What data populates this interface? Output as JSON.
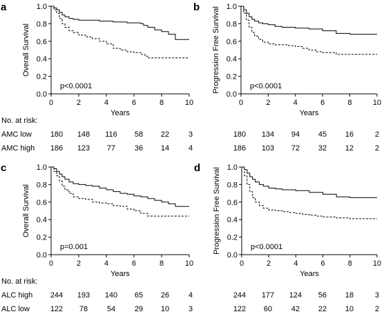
{
  "chart_data": [
    {
      "panel": "a",
      "type": "line",
      "xlabel": "Years",
      "ylabel": "Overall Survival",
      "xlim": [
        0,
        10
      ],
      "ylim": [
        0,
        1.0
      ],
      "xticks": [
        "0",
        "2",
        "4",
        "6",
        "8",
        "10"
      ],
      "yticks": [
        "0.0",
        "0.2",
        "0.4",
        "0.6",
        "0.8",
        "1.0"
      ],
      "pvalue": "p<0.0001",
      "series": [
        {
          "style": "solid",
          "x": [
            0,
            0.2,
            0.4,
            0.6,
            0.8,
            1.0,
            1.3,
            1.6,
            2.0,
            2.5,
            3.0,
            3.5,
            4.0,
            4.5,
            5.0,
            5.5,
            6.0,
            6.5,
            6.7,
            7.0,
            7.5,
            8.0,
            8.5,
            9.0,
            10.0
          ],
          "y": [
            1.0,
            0.98,
            0.96,
            0.93,
            0.9,
            0.88,
            0.86,
            0.85,
            0.84,
            0.84,
            0.84,
            0.83,
            0.83,
            0.82,
            0.82,
            0.81,
            0.81,
            0.8,
            0.78,
            0.76,
            0.73,
            0.71,
            0.68,
            0.62,
            0.62
          ]
        },
        {
          "style": "dashed",
          "x": [
            0,
            0.2,
            0.4,
            0.6,
            0.8,
            1.0,
            1.3,
            1.6,
            2.0,
            2.5,
            3.0,
            3.5,
            4.0,
            4.5,
            5.0,
            5.5,
            6.0,
            6.5,
            6.8,
            7.0,
            8.0,
            9.0,
            10.0
          ],
          "y": [
            1.0,
            0.96,
            0.92,
            0.86,
            0.8,
            0.76,
            0.72,
            0.7,
            0.67,
            0.65,
            0.63,
            0.6,
            0.57,
            0.52,
            0.5,
            0.48,
            0.47,
            0.45,
            0.43,
            0.41,
            0.41,
            0.41,
            0.41
          ]
        }
      ]
    },
    {
      "panel": "b",
      "type": "line",
      "xlabel": "Years",
      "ylabel": "Progression Free Survival",
      "xlim": [
        0,
        10
      ],
      "ylim": [
        0,
        1.0
      ],
      "xticks": [
        "0",
        "2",
        "4",
        "6",
        "8",
        "10"
      ],
      "yticks": [
        "0.0",
        "0.2",
        "0.4",
        "0.6",
        "0.8",
        "1.0"
      ],
      "pvalue": "p<0.0001",
      "series": [
        {
          "style": "solid",
          "x": [
            0,
            0.2,
            0.4,
            0.6,
            0.8,
            1.0,
            1.3,
            1.6,
            2.0,
            2.5,
            3.0,
            4.0,
            5.0,
            6.0,
            7.0,
            8.0,
            10.0
          ],
          "y": [
            1.0,
            0.96,
            0.92,
            0.88,
            0.85,
            0.83,
            0.81,
            0.8,
            0.79,
            0.77,
            0.76,
            0.75,
            0.74,
            0.72,
            0.69,
            0.68,
            0.68
          ]
        },
        {
          "style": "dashed",
          "x": [
            0,
            0.2,
            0.4,
            0.6,
            0.8,
            1.0,
            1.3,
            1.6,
            2.0,
            2.5,
            3.0,
            3.5,
            4.0,
            4.5,
            5.0,
            5.5,
            6.0,
            7.0,
            8.0,
            10.0
          ],
          "y": [
            1.0,
            0.92,
            0.84,
            0.76,
            0.7,
            0.66,
            0.62,
            0.59,
            0.57,
            0.56,
            0.56,
            0.55,
            0.54,
            0.52,
            0.5,
            0.48,
            0.47,
            0.45,
            0.45,
            0.45
          ]
        }
      ]
    },
    {
      "panel": "c",
      "type": "line",
      "xlabel": "Years",
      "ylabel": "Overall Survival",
      "xlim": [
        0,
        10
      ],
      "ylim": [
        0,
        1.0
      ],
      "xticks": [
        "0",
        "2",
        "4",
        "6",
        "8",
        "10"
      ],
      "yticks": [
        "0.0",
        "0.2",
        "0.4",
        "0.6",
        "0.8",
        "1.0"
      ],
      "pvalue": "p=0.001",
      "series": [
        {
          "style": "solid",
          "x": [
            0,
            0.2,
            0.4,
            0.6,
            0.8,
            1.0,
            1.3,
            1.6,
            2.0,
            2.5,
            3.0,
            3.5,
            4.0,
            4.5,
            5.0,
            5.5,
            6.0,
            6.5,
            7.0,
            7.5,
            8.0,
            8.5,
            9.0,
            10.0
          ],
          "y": [
            1.0,
            0.98,
            0.95,
            0.92,
            0.89,
            0.86,
            0.83,
            0.81,
            0.8,
            0.79,
            0.78,
            0.76,
            0.74,
            0.72,
            0.7,
            0.69,
            0.67,
            0.66,
            0.64,
            0.62,
            0.6,
            0.58,
            0.55,
            0.55
          ]
        },
        {
          "style": "dashed",
          "x": [
            0,
            0.2,
            0.4,
            0.6,
            0.8,
            1.0,
            1.3,
            1.6,
            2.0,
            2.5,
            3.0,
            3.5,
            4.0,
            4.5,
            5.0,
            5.5,
            6.0,
            6.5,
            7.0,
            8.0,
            9.0,
            10.0
          ],
          "y": [
            1.0,
            0.95,
            0.9,
            0.84,
            0.78,
            0.74,
            0.7,
            0.66,
            0.64,
            0.63,
            0.6,
            0.59,
            0.58,
            0.56,
            0.55,
            0.52,
            0.5,
            0.47,
            0.44,
            0.44,
            0.44,
            0.44
          ]
        }
      ]
    },
    {
      "panel": "d",
      "type": "line",
      "xlabel": "Years",
      "ylabel": "Progression Free Survival",
      "xlim": [
        0,
        10
      ],
      "ylim": [
        0,
        1.0
      ],
      "xticks": [
        "0",
        "2",
        "4",
        "6",
        "8",
        "10"
      ],
      "yticks": [
        "0.0",
        "0.2",
        "0.4",
        "0.6",
        "0.8",
        "1.0"
      ],
      "pvalue": "p<0.0001",
      "series": [
        {
          "style": "solid",
          "x": [
            0,
            0.2,
            0.4,
            0.6,
            0.8,
            1.0,
            1.3,
            1.6,
            2.0,
            2.5,
            3.0,
            4.0,
            5.0,
            6.0,
            7.0,
            8.0,
            10.0
          ],
          "y": [
            1.0,
            0.97,
            0.93,
            0.89,
            0.86,
            0.83,
            0.8,
            0.78,
            0.76,
            0.75,
            0.74,
            0.73,
            0.71,
            0.69,
            0.66,
            0.65,
            0.65
          ]
        },
        {
          "style": "dashed",
          "x": [
            0,
            0.2,
            0.4,
            0.6,
            0.8,
            1.0,
            1.3,
            1.6,
            2.0,
            2.5,
            3.0,
            3.5,
            4.0,
            4.5,
            5.0,
            5.5,
            6.0,
            7.0,
            8.0,
            10.0
          ],
          "y": [
            1.0,
            0.9,
            0.8,
            0.72,
            0.65,
            0.6,
            0.56,
            0.53,
            0.51,
            0.5,
            0.49,
            0.48,
            0.47,
            0.46,
            0.45,
            0.44,
            0.43,
            0.42,
            0.41,
            0.41
          ]
        }
      ]
    }
  ],
  "risk_tables": {
    "top": {
      "title": "No. at risk:",
      "rows": [
        {
          "label": "AMC low",
          "left": [
            "180",
            "148",
            "116",
            "58",
            "22",
            "3"
          ],
          "right": [
            "180",
            "134",
            "94",
            "45",
            "16",
            "2"
          ]
        },
        {
          "label": "AMC high",
          "left": [
            "186",
            "123",
            "77",
            "36",
            "14",
            "4"
          ],
          "right": [
            "186",
            "103",
            "72",
            "32",
            "12",
            "2"
          ]
        }
      ]
    },
    "bottom": {
      "title": "No. at risk:",
      "rows": [
        {
          "label": "ALC high",
          "left": [
            "244",
            "193",
            "140",
            "65",
            "26",
            "4"
          ],
          "right": [
            "244",
            "177",
            "124",
            "56",
            "18",
            "3"
          ]
        },
        {
          "label": "ALC low",
          "left": [
            "122",
            "78",
            "54",
            "29",
            "10",
            "3"
          ],
          "right": [
            "122",
            "60",
            "42",
            "22",
            "10",
            "2"
          ]
        }
      ]
    }
  }
}
